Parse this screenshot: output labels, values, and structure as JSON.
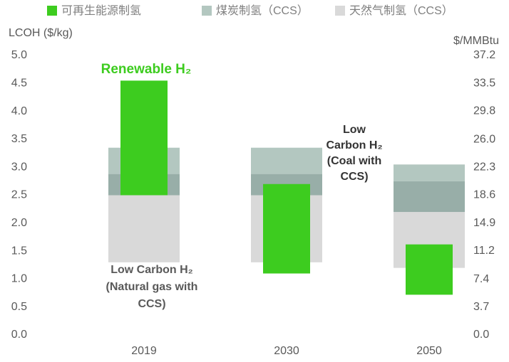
{
  "chart_data": {
    "type": "range-bar",
    "categories": [
      "2019",
      "2030",
      "2050"
    ],
    "ylabel": "LCOH ($/kg)",
    "y2label": "$/MMBtu",
    "ylim": [
      0,
      5
    ],
    "yticks": [
      {
        "value": 0,
        "label": "0.0"
      },
      0.5,
      {
        "value": 1,
        "label": "1.0"
      },
      1.5,
      {
        "value": 2,
        "label": "2.0"
      },
      2.5,
      {
        "value": 3,
        "label": "3.0"
      },
      3.5,
      {
        "value": 4,
        "label": "4.0"
      },
      4.5,
      {
        "value": 5,
        "label": "5.0"
      }
    ],
    "y2lim": [
      0,
      37.2
    ],
    "y2ticks": [
      {
        "value": 0,
        "label": "0.0"
      },
      3.7,
      7.4,
      11.2,
      14.9,
      18.6,
      22.3,
      {
        "value": 26,
        "label": "26.0"
      },
      29.8,
      33.5,
      37.2
    ],
    "grid": false,
    "series": [
      {
        "name": "天然气制氢（CCS）",
        "color": "#d9d9d9",
        "low": [
          1.3,
          1.3,
          1.2
        ],
        "high": [
          2.5,
          2.5,
          2.2
        ]
      },
      {
        "name": "煤炭制氢（CCS）",
        "color": "#b3c7c0",
        "inner_color": "#98aea8",
        "low": [
          2.5,
          2.5,
          2.2
        ],
        "mid": [
          2.88,
          2.88,
          2.75
        ],
        "high": [
          3.35,
          3.35,
          3.05
        ]
      },
      {
        "name": "可再生能源制氢",
        "color": "#3dcc1f",
        "low": [
          2.5,
          1.1,
          0.72
        ],
        "high": [
          4.55,
          2.7,
          1.62
        ]
      }
    ],
    "legend_order": [
      2,
      1,
      0
    ],
    "annotations": [
      {
        "lines": [
          "Renewable H₂"
        ],
        "color": "#3dcc1f",
        "size": 19
      },
      {
        "lines": [
          "Low",
          "Carbon H₂",
          "(Coal with",
          "CCS)"
        ],
        "color": "#333333",
        "size": 16
      },
      {
        "lines": [
          "Low Carbon H₂",
          "(Natural gas with",
          "CCS)"
        ],
        "color": "#595959",
        "size": 16
      }
    ]
  }
}
